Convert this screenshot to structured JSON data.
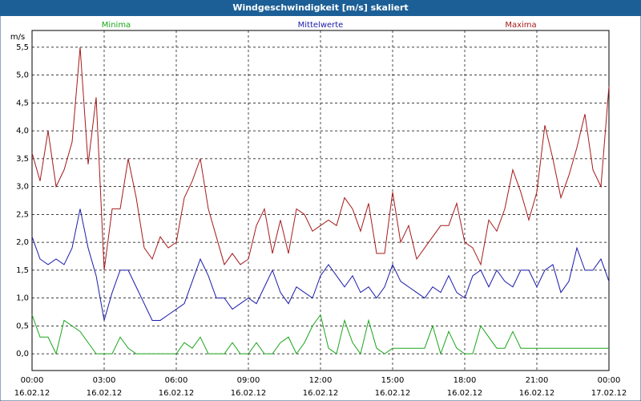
{
  "chart_data": {
    "type": "line",
    "title": "Windgeschwindigkeit [m/s] skaliert",
    "y_label": "m/s",
    "x": [
      0,
      20,
      40,
      60,
      80,
      100,
      120,
      140,
      160,
      180,
      200,
      220,
      240,
      260,
      280,
      300,
      320,
      340,
      360,
      380,
      400,
      420,
      440,
      460,
      480,
      500,
      520,
      540,
      560,
      580,
      600,
      620,
      640,
      660,
      680,
      700,
      720,
      740,
      760,
      780,
      800,
      820,
      840,
      860,
      880,
      900,
      920,
      940,
      960,
      980,
      1000,
      1020,
      1040,
      1060,
      1080,
      1100,
      1120,
      1140,
      1160,
      1180,
      1200,
      1220,
      1240,
      1260,
      1280,
      1300,
      1320,
      1340,
      1360,
      1380,
      1400,
      1420,
      1440
    ],
    "series": [
      {
        "name": "Minima",
        "color": "#1aa51a",
        "values": [
          0.7,
          0.3,
          0.3,
          0.0,
          0.6,
          0.5,
          0.4,
          0.2,
          0.0,
          0.0,
          0.0,
          0.3,
          0.1,
          0.0,
          0.0,
          0.0,
          0.0,
          0.0,
          0.0,
          0.2,
          0.1,
          0.3,
          0.0,
          0.0,
          0.0,
          0.2,
          0.0,
          0.0,
          0.2,
          0.0,
          0.0,
          0.2,
          0.3,
          0.0,
          0.2,
          0.5,
          0.7,
          0.1,
          0.0,
          0.6,
          0.2,
          0.0,
          0.6,
          0.1,
          0.0,
          0.1,
          0.1,
          0.1,
          0.1,
          0.1,
          0.5,
          0.0,
          0.4,
          0.1,
          0.0,
          0.0,
          0.5,
          0.3,
          0.1,
          0.1,
          0.4,
          0.1,
          0.1,
          0.1,
          0.1,
          0.1,
          0.1,
          0.1,
          0.1,
          0.1,
          0.1,
          0.1,
          0.1
        ]
      },
      {
        "name": "Mittelwerte",
        "color": "#1a1aaa",
        "values": [
          2.1,
          1.7,
          1.6,
          1.7,
          1.6,
          1.9,
          2.6,
          1.9,
          1.4,
          0.6,
          1.1,
          1.5,
          1.5,
          1.2,
          0.9,
          0.6,
          0.6,
          0.7,
          0.8,
          0.9,
          1.3,
          1.7,
          1.4,
          1.0,
          1.0,
          0.8,
          0.9,
          1.0,
          0.9,
          1.2,
          1.5,
          1.1,
          0.9,
          1.2,
          1.1,
          1.0,
          1.4,
          1.6,
          1.4,
          1.2,
          1.4,
          1.1,
          1.2,
          1.0,
          1.2,
          1.6,
          1.3,
          1.2,
          1.1,
          1.0,
          1.2,
          1.1,
          1.4,
          1.1,
          1.0,
          1.4,
          1.5,
          1.2,
          1.5,
          1.3,
          1.2,
          1.5,
          1.5,
          1.2,
          1.5,
          1.6,
          1.1,
          1.3,
          1.9,
          1.5,
          1.5,
          1.7,
          1.3
        ]
      },
      {
        "name": "Maxima",
        "color": "#a51a1a",
        "values": [
          3.6,
          3.1,
          4.0,
          3.0,
          3.3,
          3.8,
          5.5,
          3.4,
          4.6,
          1.5,
          2.6,
          2.6,
          3.5,
          2.8,
          1.9,
          1.7,
          2.1,
          1.9,
          2.0,
          2.8,
          3.1,
          3.5,
          2.6,
          2.1,
          1.6,
          1.8,
          1.6,
          1.7,
          2.3,
          2.6,
          1.8,
          2.4,
          1.8,
          2.6,
          2.5,
          2.2,
          2.3,
          2.4,
          2.3,
          2.8,
          2.6,
          2.2,
          2.7,
          1.8,
          1.8,
          2.9,
          2.0,
          2.3,
          1.7,
          1.9,
          2.1,
          2.3,
          2.3,
          2.7,
          2.0,
          1.9,
          1.6,
          2.4,
          2.2,
          2.6,
          3.3,
          2.9,
          2.4,
          2.9,
          4.1,
          3.5,
          2.8,
          3.2,
          3.7,
          4.3,
          3.3,
          3.0,
          4.8
        ]
      }
    ],
    "xlim": [
      0,
      1440
    ],
    "xticks": [
      {
        "value": 0,
        "label": [
          "00:00",
          "16.02.12"
        ]
      },
      {
        "value": 180,
        "label": [
          "03:00",
          "16.02.12"
        ]
      },
      {
        "value": 360,
        "label": [
          "06:00",
          "16.02.12"
        ]
      },
      {
        "value": 540,
        "label": [
          "09:00",
          "16.02.12"
        ]
      },
      {
        "value": 720,
        "label": [
          "12:00",
          "16.02.12"
        ]
      },
      {
        "value": 900,
        "label": [
          "15:00",
          "16.02.12"
        ]
      },
      {
        "value": 1080,
        "label": [
          "18:00",
          "16.02.12"
        ]
      },
      {
        "value": 1260,
        "label": [
          "21:00",
          "16.02.12"
        ]
      },
      {
        "value": 1440,
        "label": [
          "00:00",
          "17.02.12"
        ]
      }
    ],
    "ylim": [
      -0.3,
      5.8
    ],
    "yticks": [
      {
        "value": 0,
        "label": "0,0"
      },
      {
        "value": 0.5,
        "label": "0,5"
      },
      {
        "value": 1,
        "label": "1,0"
      },
      {
        "value": 1.5,
        "label": "1,5"
      },
      {
        "value": 2,
        "label": "2,0"
      },
      {
        "value": 2.5,
        "label": "2,5"
      },
      {
        "value": 3,
        "label": "3,0"
      },
      {
        "value": 3.5,
        "label": "3,5"
      },
      {
        "value": 4,
        "label": "4,0"
      },
      {
        "value": 4.5,
        "label": "4,5"
      },
      {
        "value": 5,
        "label": "5,0"
      },
      {
        "value": 5.5,
        "label": "5,5"
      }
    ],
    "grid": true
  }
}
